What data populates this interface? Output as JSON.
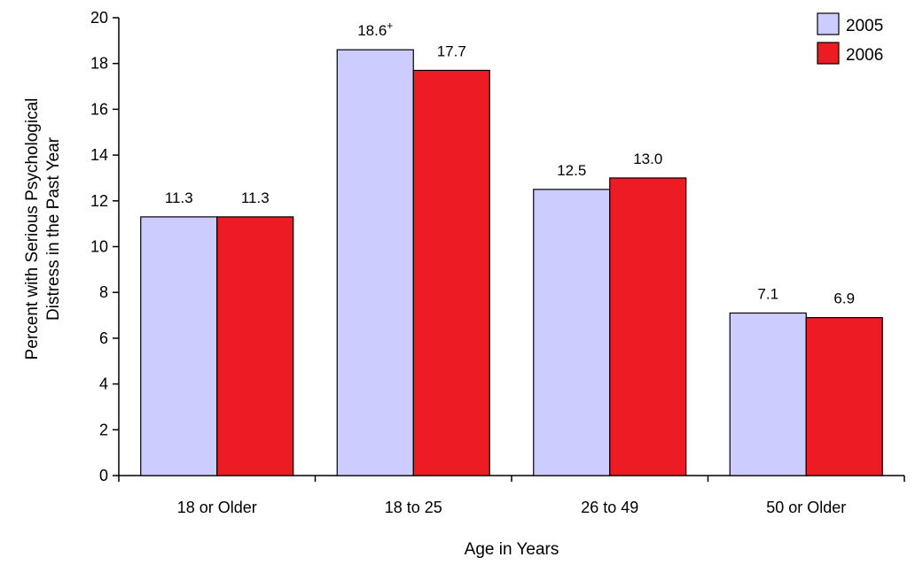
{
  "chart_data": {
    "type": "bar",
    "categories": [
      "18 or Older",
      "18 to 25",
      "26 to 49",
      "50 or Older"
    ],
    "series": [
      {
        "name": "2005",
        "values": [
          11.3,
          18.6,
          12.5,
          7.1
        ],
        "labels": [
          "11.3",
          "18.6+",
          "12.5",
          "7.1"
        ],
        "color": "#ccccff"
      },
      {
        "name": "2006",
        "values": [
          11.3,
          17.7,
          13.0,
          6.9
        ],
        "labels": [
          "11.3",
          "17.7",
          "13.0",
          "6.9"
        ],
        "color": "#ed1c24"
      }
    ],
    "xlabel": "Age in Years",
    "ylabel_lines": [
      "Percent with Serious Psychological",
      "Distress in the Past Year"
    ],
    "ylim": [
      0,
      20
    ],
    "yticks": [
      0,
      2,
      4,
      6,
      8,
      10,
      12,
      14,
      16,
      18,
      20
    ],
    "grid": false,
    "legend_position": "top-right"
  }
}
